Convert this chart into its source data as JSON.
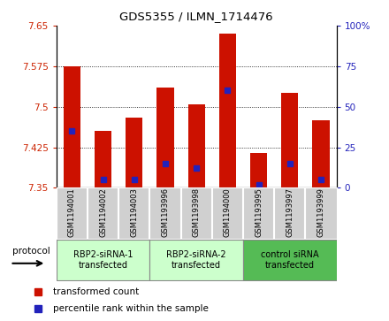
{
  "title": "GDS5355 / ILMN_1714476",
  "samples": [
    "GSM1194001",
    "GSM1194002",
    "GSM1194003",
    "GSM1193996",
    "GSM1193998",
    "GSM1194000",
    "GSM1193995",
    "GSM1193997",
    "GSM1193999"
  ],
  "red_values": [
    7.575,
    7.455,
    7.48,
    7.535,
    7.505,
    7.635,
    7.415,
    7.525,
    7.475
  ],
  "blue_percentiles": [
    35,
    5,
    5,
    15,
    12,
    60,
    2,
    15,
    5
  ],
  "y_min": 7.35,
  "y_max": 7.65,
  "y_ticks": [
    7.35,
    7.425,
    7.5,
    7.575,
    7.65
  ],
  "y2_ticks": [
    0,
    25,
    50,
    75,
    100
  ],
  "groups": [
    {
      "label": "RBP2-siRNA-1\ntransfected",
      "start": 0,
      "end": 3,
      "color": "#ccffcc"
    },
    {
      "label": "RBP2-siRNA-2\ntransfected",
      "start": 3,
      "end": 6,
      "color": "#ccffcc"
    },
    {
      "label": "control siRNA\ntransfected",
      "start": 6,
      "end": 9,
      "color": "#55bb55"
    }
  ],
  "bar_color": "#cc1100",
  "blue_color": "#2222bb",
  "bar_width": 0.55,
  "plot_bg": "#ffffff",
  "sample_box_color": "#d0d0d0",
  "protocol_label": "protocol",
  "legend_red": "transformed count",
  "legend_blue": "percentile rank within the sample"
}
